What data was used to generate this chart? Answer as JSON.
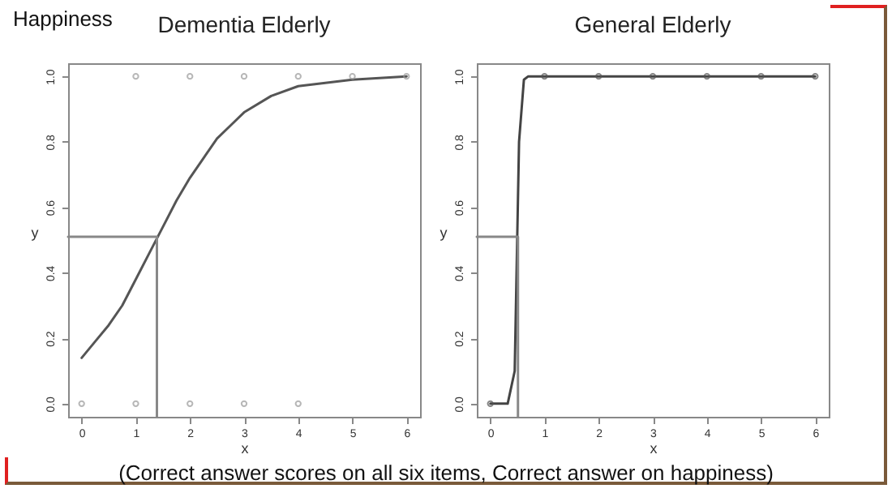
{
  "chart_data": [
    {
      "type": "line",
      "title": "Dementia Elderly",
      "xlabel": "x",
      "ylabel": "y",
      "annotations": [
        "Happiness",
        "(Correct answer scores on all six items, Correct answer on happiness)"
      ],
      "xlim": [
        -0.25,
        6.25
      ],
      "ylim": [
        -0.04,
        1.04
      ],
      "xticks": [
        0,
        1,
        2,
        3,
        4,
        5,
        6
      ],
      "yticks": [
        {
          "value": 0,
          "label": "0.0"
        },
        {
          "value": 0.2,
          "label": "0.2"
        },
        {
          "value": 0.4,
          "label": "0.4"
        },
        {
          "value": 0.6,
          "label": "0.6"
        },
        {
          "value": 0.8,
          "label": "0.8"
        },
        {
          "value": 1,
          "label": "1.0"
        }
      ],
      "grid": false,
      "series": [
        {
          "type": "line",
          "color": "#555555",
          "x": [
            0,
            0.25,
            0.5,
            0.75,
            1,
            1.25,
            1.5,
            1.75,
            2,
            2.25,
            2.5,
            2.75,
            3,
            3.5,
            4,
            4.5,
            5,
            5.5,
            6
          ],
          "values": [
            0.14,
            0.19,
            0.24,
            0.3,
            0.38,
            0.46,
            0.54,
            0.62,
            0.69,
            0.75,
            0.81,
            0.85,
            0.89,
            0.94,
            0.97,
            0.98,
            0.99,
            0.995,
            1
          ]
        },
        {
          "type": "scatter",
          "marker": "circle",
          "color": "#999999",
          "x": [
            1,
            2,
            3,
            4,
            5,
            6,
            0,
            1,
            2,
            3,
            4
          ],
          "values": [
            1,
            1,
            1,
            1,
            1,
            1,
            0,
            0,
            0,
            0,
            0
          ]
        },
        {
          "type": "line",
          "color": "#888888",
          "x": [
            -0.25,
            1.39,
            1.39
          ],
          "values": [
            0.51,
            0.51,
            -0.04
          ]
        }
      ]
    },
    {
      "type": "line",
      "title": "General Elderly",
      "xlabel": "x",
      "ylabel": "y",
      "xlim": [
        -0.25,
        6.25
      ],
      "ylim": [
        -0.04,
        1.04
      ],
      "xticks": [
        0,
        1,
        2,
        3,
        4,
        5,
        6
      ],
      "yticks": [
        {
          "value": 0,
          "label": "0.0"
        },
        {
          "value": 0.2,
          "label": "0.2"
        },
        {
          "value": 0.4,
          "label": "0.4"
        },
        {
          "value": 0.6,
          "label": "0.6"
        },
        {
          "value": 0.8,
          "label": "0.8"
        },
        {
          "value": 1,
          "label": "1.0"
        }
      ],
      "grid": false,
      "series": [
        {
          "type": "line",
          "color": "#444444",
          "x": [
            0,
            0.32,
            0.45,
            0.53,
            0.62,
            0.7,
            1,
            2,
            3,
            4,
            5,
            6
          ],
          "values": [
            0,
            0,
            0.1,
            0.8,
            0.99,
            1,
            1,
            1,
            1,
            1,
            1,
            1
          ]
        },
        {
          "type": "scatter",
          "marker": "circle",
          "color": "#555555",
          "x": [
            0,
            1,
            2,
            3,
            4,
            5,
            6
          ],
          "values": [
            0,
            1,
            1,
            1,
            1,
            1,
            1
          ]
        },
        {
          "type": "line",
          "color": "#888888",
          "x": [
            -0.25,
            0.51,
            0.51
          ],
          "values": [
            0.51,
            0.51,
            -0.04
          ]
        }
      ]
    }
  ]
}
